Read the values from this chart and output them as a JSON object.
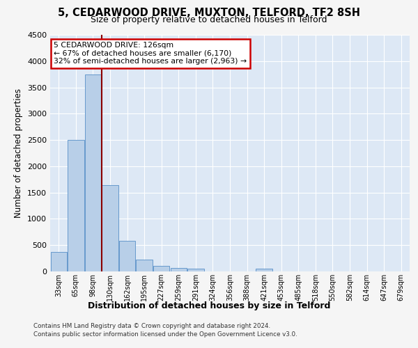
{
  "title_line1": "5, CEDARWOOD DRIVE, MUXTON, TELFORD, TF2 8SH",
  "title_line2": "Size of property relative to detached houses in Telford",
  "xlabel": "Distribution of detached houses by size in Telford",
  "ylabel": "Number of detached properties",
  "categories": [
    "33sqm",
    "65sqm",
    "98sqm",
    "130sqm",
    "162sqm",
    "195sqm",
    "227sqm",
    "259sqm",
    "291sqm",
    "324sqm",
    "356sqm",
    "388sqm",
    "421sqm",
    "453sqm",
    "485sqm",
    "518sqm",
    "550sqm",
    "582sqm",
    "614sqm",
    "647sqm",
    "679sqm"
  ],
  "values": [
    370,
    2500,
    3750,
    1640,
    585,
    225,
    110,
    65,
    55,
    0,
    0,
    0,
    55,
    0,
    0,
    0,
    0,
    0,
    0,
    0,
    0
  ],
  "bar_color": "#b8cfe8",
  "bar_edge_color": "#6699cc",
  "property_line_index": 3,
  "property_line_color": "#8b0000",
  "ylim": [
    0,
    4500
  ],
  "yticks": [
    0,
    500,
    1000,
    1500,
    2000,
    2500,
    3000,
    3500,
    4000,
    4500
  ],
  "annotation_box_line1": "5 CEDARWOOD DRIVE: 126sqm",
  "annotation_box_line2": "← 67% of detached houses are smaller (6,170)",
  "annotation_box_line3": "32% of semi-detached houses are larger (2,963) →",
  "annotation_box_color": "#cc0000",
  "background_color": "#dde8f5",
  "grid_color": "#ffffff",
  "fig_bg_color": "#f5f5f5",
  "footer_line1": "Contains HM Land Registry data © Crown copyright and database right 2024.",
  "footer_line2": "Contains public sector information licensed under the Open Government Licence v3.0."
}
